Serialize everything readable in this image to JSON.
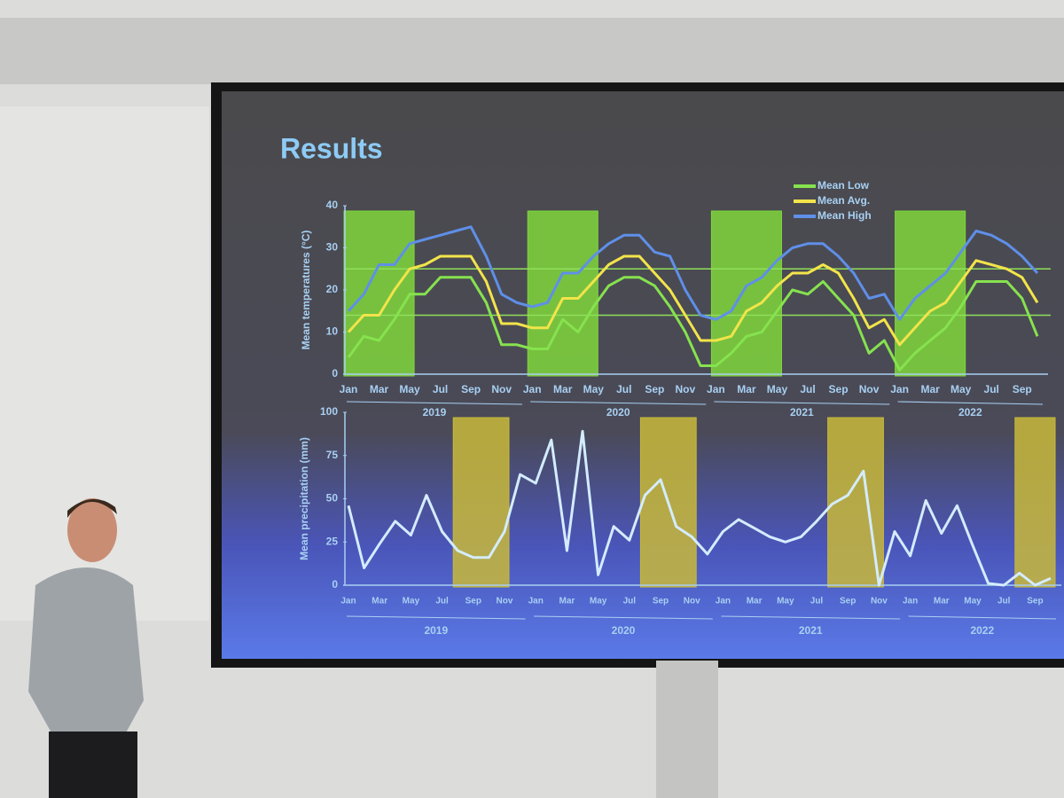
{
  "title": "Results",
  "chart_data": [
    {
      "type": "line",
      "y_label": "Mean temperatures (°C)",
      "categories": [
        "Jan",
        null,
        "Mar",
        null,
        "May",
        null,
        "Jul",
        null,
        "Sep",
        null,
        "Nov",
        null,
        "Jan",
        null,
        "Mar",
        null,
        "May",
        null,
        "Jul",
        null,
        "Sep",
        null,
        "Nov",
        null,
        "Jan",
        null,
        "Mar",
        null,
        "May",
        null,
        "Jul",
        null,
        "Sep",
        null,
        "Nov",
        null,
        "Jan",
        null,
        "Mar",
        null,
        "May",
        null,
        "Jul",
        null,
        "Sep",
        null
      ],
      "year_groups": [
        {
          "label": "2019",
          "start": 0,
          "end": 11
        },
        {
          "label": "2020",
          "start": 12,
          "end": 23
        },
        {
          "label": "2021",
          "start": 24,
          "end": 35
        },
        {
          "label": "2022",
          "start": 36,
          "end": 45
        }
      ],
      "series": [
        {
          "name": "Mean Low",
          "color": "#86e24e",
          "values": [
            4,
            9,
            8,
            13,
            19,
            19,
            23,
            23,
            23,
            17,
            7,
            7,
            6,
            6,
            13,
            10,
            16,
            21,
            23,
            23,
            21,
            16,
            10,
            2,
            2,
            5,
            9,
            10,
            15,
            20,
            19,
            22,
            18,
            14,
            5,
            8,
            1,
            5,
            8,
            11,
            16,
            22,
            22,
            22,
            18,
            9
          ]
        },
        {
          "name": "Mean Avg.",
          "color": "#f2e44a",
          "values": [
            10,
            14,
            14,
            20,
            25,
            26,
            28,
            28,
            28,
            22,
            12,
            12,
            11,
            11,
            18,
            18,
            22,
            26,
            28,
            28,
            24,
            20,
            14,
            8,
            8,
            9,
            15,
            17,
            21,
            24,
            24,
            26,
            24,
            18,
            11,
            13,
            7,
            11,
            15,
            17,
            22,
            27,
            26,
            25,
            23,
            17
          ]
        },
        {
          "name": "Mean High",
          "color": "#5f8fe8",
          "values": [
            15,
            19,
            26,
            26,
            31,
            32,
            33,
            34,
            35,
            28,
            19,
            17,
            16,
            17,
            24,
            24,
            28,
            31,
            33,
            33,
            29,
            28,
            20,
            14,
            13,
            15,
            21,
            23,
            27,
            30,
            31,
            31,
            28,
            24,
            18,
            19,
            13,
            18,
            21,
            24,
            29,
            34,
            33,
            31,
            28,
            24
          ]
        }
      ],
      "bands": [
        [
          0,
          4
        ],
        [
          12,
          16
        ],
        [
          24,
          28
        ],
        [
          36,
          40
        ]
      ],
      "band_color": "#7fd63c",
      "ref_lines": [
        25,
        14
      ],
      "ref_color": "#8fe05a",
      "ylim": [
        0,
        40
      ],
      "yticks": [
        0,
        10,
        20,
        30,
        40
      ],
      "legend": "top-right"
    },
    {
      "type": "line",
      "y_label": "Mean precipitation (mm)",
      "categories": [
        "Jan",
        null,
        "Mar",
        null,
        "May",
        null,
        "Jul",
        null,
        "Sep",
        null,
        "Nov",
        null,
        "Jan",
        null,
        "Mar",
        null,
        "May",
        null,
        "Jul",
        null,
        "Sep",
        null,
        "Nov",
        null,
        "Jan",
        null,
        "Mar",
        null,
        "May",
        null,
        "Jul",
        null,
        "Sep",
        null,
        "Nov",
        null,
        "Jan",
        null,
        "Mar",
        null,
        "May",
        null,
        "Jul",
        null,
        "Sep",
        null
      ],
      "year_groups": [
        {
          "label": "2019",
          "start": 0,
          "end": 11
        },
        {
          "label": "2020",
          "start": 12,
          "end": 23
        },
        {
          "label": "2021",
          "start": 24,
          "end": 35
        },
        {
          "label": "2022",
          "start": 36,
          "end": 45
        }
      ],
      "series": [
        {
          "color": "#d4ecff",
          "values": [
            46,
            10,
            24,
            37,
            29,
            52,
            31,
            20,
            16,
            16,
            31,
            64,
            59,
            84,
            20,
            89,
            6,
            34,
            26,
            52,
            61,
            34,
            28,
            18,
            31,
            38,
            33,
            28,
            25,
            28,
            37,
            47,
            52,
            66,
            0,
            31,
            17,
            49,
            30,
            46,
            23,
            1,
            0,
            7,
            0,
            4
          ]
        }
      ],
      "bands": [
        [
          7,
          10
        ],
        [
          19,
          22
        ],
        [
          31,
          34
        ],
        [
          43,
          45
        ]
      ],
      "band_color": "#c8b83a",
      "ylim": [
        0,
        100
      ],
      "yticks": [
        0,
        25,
        50,
        75,
        100
      ]
    }
  ]
}
